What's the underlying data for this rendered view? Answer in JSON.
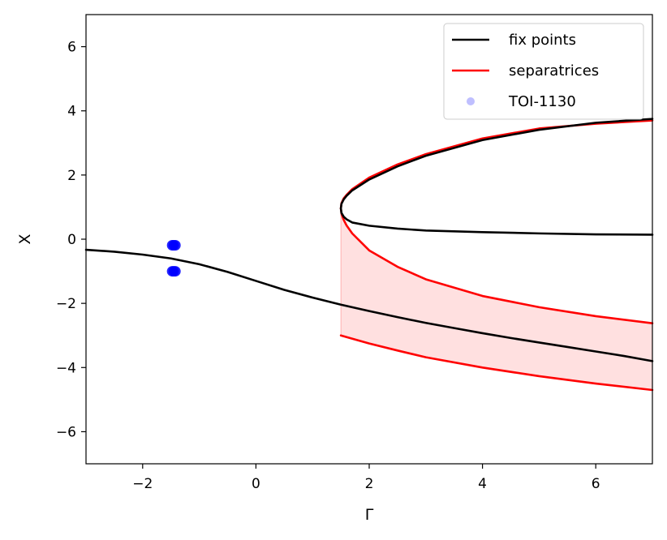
{
  "chart_data": {
    "type": "line",
    "xlabel": "Γ",
    "ylabel": "X",
    "xlim": [
      -3,
      7
    ],
    "ylim": [
      -7,
      7
    ],
    "xticks": [
      {
        "value": -2,
        "label": "−2"
      },
      {
        "value": 0,
        "label": "0"
      },
      {
        "value": 2,
        "label": "2"
      },
      {
        "value": 4,
        "label": "4"
      },
      {
        "value": 6,
        "label": "6"
      }
    ],
    "yticks": [
      {
        "value": -6,
        "label": "−6"
      },
      {
        "value": -4,
        "label": "−4"
      },
      {
        "value": -2,
        "label": "−2"
      },
      {
        "value": 0,
        "label": "0"
      },
      {
        "value": 2,
        "label": "2"
      },
      {
        "value": 4,
        "label": "4"
      },
      {
        "value": 6,
        "label": "6"
      }
    ],
    "grid": false,
    "legend_position": "top-right",
    "colors": {
      "fix_points": "#000000",
      "separatrices": "#ff0000",
      "shaded_region": "#ffe0e0",
      "toi": "#0000ff"
    },
    "series": [
      {
        "name": "fix points",
        "kind": "line",
        "color": "#000000",
        "segments": [
          {
            "x": [
              -3,
              -2.5,
              -2,
              -1.5,
              -1,
              -0.5,
              0,
              0.5,
              1,
              1.5,
              2,
              2.5,
              3,
              3.5,
              4,
              4.5,
              5,
              5.5,
              6,
              6.5,
              7
            ],
            "y": [
              -0.33,
              -0.39,
              -0.48,
              -0.6,
              -0.78,
              -1.02,
              -1.3,
              -1.58,
              -1.82,
              -2.04,
              -2.24,
              -2.43,
              -2.61,
              -2.77,
              -2.93,
              -3.08,
              -3.22,
              -3.36,
              -3.5,
              -3.64,
              -3.8
            ]
          },
          {
            "x": [
              1.5,
              1.51,
              1.55,
              1.6,
              1.7,
              2,
              2.5,
              3,
              4,
              5,
              6,
              7
            ],
            "y": [
              0.96,
              1.1,
              1.24,
              1.35,
              1.52,
              1.86,
              2.27,
              2.6,
              3.09,
              3.41,
              3.63,
              3.75
            ]
          },
          {
            "x": [
              1.5,
              1.51,
              1.55,
              1.6,
              1.7,
              2,
              2.5,
              3,
              4,
              5,
              6,
              7
            ],
            "y": [
              0.96,
              0.82,
              0.7,
              0.62,
              0.52,
              0.42,
              0.33,
              0.27,
              0.22,
              0.18,
              0.15,
              0.14
            ]
          }
        ]
      },
      {
        "name": "separatrices",
        "kind": "line",
        "color": "#ff0000",
        "segments": [
          {
            "x": [
              1.5,
              1.51,
              1.55,
              1.6,
              1.7,
              2,
              2.5,
              3,
              4,
              5,
              6,
              7
            ],
            "y": [
              0.96,
              1.12,
              1.27,
              1.38,
              1.56,
              1.92,
              2.33,
              2.65,
              3.14,
              3.45,
              3.6,
              3.7
            ]
          },
          {
            "x": [
              1.5,
              1.51,
              1.55,
              1.6,
              1.7,
              2,
              2.5,
              3,
              4,
              5,
              6,
              7
            ],
            "y": [
              0.96,
              0.8,
              0.6,
              0.43,
              0.18,
              -0.35,
              -0.86,
              -1.25,
              -1.77,
              -2.12,
              -2.4,
              -2.62
            ]
          },
          {
            "x": [
              1.5,
              2,
              2.5,
              3,
              4,
              5,
              6,
              7
            ],
            "y": [
              -3.0,
              -3.25,
              -3.47,
              -3.68,
              -4.0,
              -4.27,
              -4.5,
              -4.7
            ]
          }
        ]
      },
      {
        "name": "TOI-1130",
        "kind": "scatter",
        "color": "#0000ff",
        "points": [
          {
            "x": -1.45,
            "y": -0.19
          },
          {
            "x": -1.45,
            "y": -1.0
          }
        ]
      }
    ],
    "shaded_region": {
      "color": "#ff0000",
      "x": [
        1.5,
        1.51,
        1.55,
        1.6,
        1.7,
        2,
        2.5,
        3,
        4,
        5,
        6,
        7
      ],
      "y_upper": [
        0.96,
        0.8,
        0.6,
        0.43,
        0.18,
        -0.35,
        -0.86,
        -1.25,
        -1.77,
        -2.12,
        -2.4,
        -2.62
      ],
      "y_lower": [
        -3.0,
        -3.02,
        -3.04,
        -3.05,
        -3.1,
        -3.25,
        -3.47,
        -3.68,
        -4.0,
        -4.27,
        -4.5,
        -4.7
      ]
    },
    "legend": [
      {
        "label": "fix points",
        "marker": "line",
        "color": "#000000"
      },
      {
        "label": "separatrices",
        "marker": "line",
        "color": "#ff0000"
      },
      {
        "label": "TOI-1130",
        "marker": "dot",
        "color": "#0000ff"
      }
    ]
  }
}
